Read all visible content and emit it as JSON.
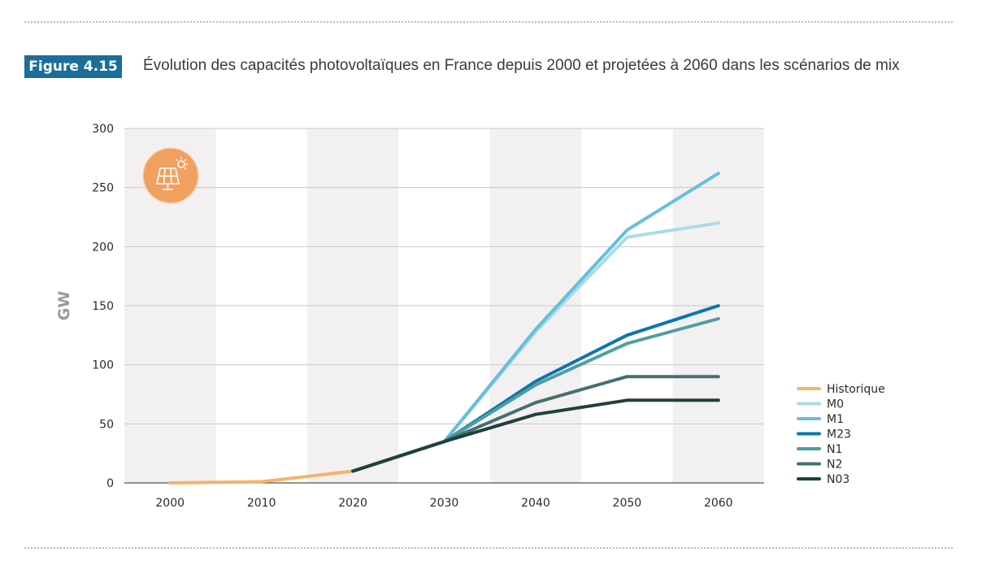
{
  "figure": {
    "badge": "Figure 4.15",
    "title": "Évolution des capacités photovoltaïques en France depuis 2000 et projetées à 2060 dans les scénarios de mix"
  },
  "icon": {
    "name": "solar-panel-icon",
    "color": "#f0a060"
  },
  "chart_data": {
    "type": "line",
    "title": "",
    "xlabel": "",
    "ylabel": "GW",
    "xlim": [
      1995,
      2065
    ],
    "ylim": [
      0,
      300
    ],
    "x_ticks": [
      2000,
      2010,
      2020,
      2030,
      2040,
      2050,
      2060
    ],
    "y_ticks": [
      0,
      50,
      100,
      150,
      200,
      250,
      300
    ],
    "grid": "horizontal",
    "band_color": "#f3f0f1",
    "legend_position": "right",
    "series": [
      {
        "name": "Historique",
        "color": "#f6b26b",
        "x": [
          2000,
          2010,
          2020
        ],
        "y": [
          0,
          1,
          10
        ]
      },
      {
        "name": "M0",
        "color": "#a8dbe9",
        "x": [
          2020,
          2030,
          2040,
          2050,
          2060
        ],
        "y": [
          10,
          35,
          128,
          208,
          220
        ]
      },
      {
        "name": "M1",
        "color": "#66bfdc",
        "x": [
          2020,
          2030,
          2040,
          2050,
          2060
        ],
        "y": [
          10,
          35,
          130,
          214,
          262
        ]
      },
      {
        "name": "M23",
        "color": "#0b75b0",
        "x": [
          2020,
          2030,
          2040,
          2050,
          2060
        ],
        "y": [
          10,
          35,
          86,
          125,
          150
        ]
      },
      {
        "name": "N1",
        "color": "#4f9ea2",
        "x": [
          2020,
          2030,
          2040,
          2050,
          2060
        ],
        "y": [
          10,
          35,
          83,
          118,
          139
        ]
      },
      {
        "name": "N2",
        "color": "#46706e",
        "x": [
          2020,
          2030,
          2040,
          2050,
          2060
        ],
        "y": [
          10,
          35,
          68,
          90,
          90
        ]
      },
      {
        "name": "N03",
        "color": "#20413c",
        "x": [
          2020,
          2030,
          2040,
          2050,
          2060
        ],
        "y": [
          10,
          35,
          58,
          70,
          70
        ]
      }
    ]
  }
}
